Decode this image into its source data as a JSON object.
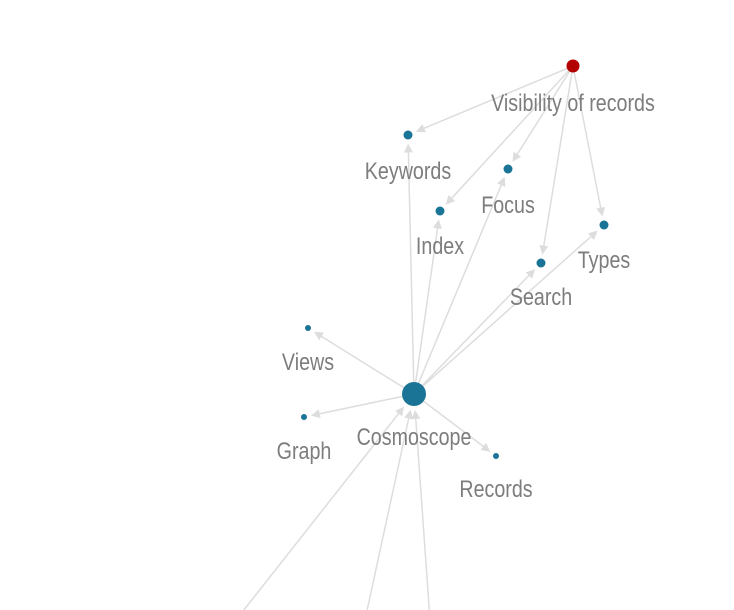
{
  "colors": {
    "background": "#ffffff",
    "edge": "#dddddd",
    "label": "#7d7d7d",
    "node_default": "#1a7496",
    "node_highlight": "#b30000"
  },
  "nodes": [
    {
      "id": "visibility",
      "label": "Visibility of records",
      "color": "#b30000"
    },
    {
      "id": "keywords",
      "label": "Keywords",
      "color": "#1a7496"
    },
    {
      "id": "focus",
      "label": "Focus",
      "color": "#1a7496"
    },
    {
      "id": "index",
      "label": "Index",
      "color": "#1a7496"
    },
    {
      "id": "types",
      "label": "Types",
      "color": "#1a7496"
    },
    {
      "id": "search",
      "label": "Search",
      "color": "#1a7496"
    },
    {
      "id": "views",
      "label": "Views",
      "color": "#1a7496"
    },
    {
      "id": "cosmoscope",
      "label": "Cosmoscope",
      "color": "#1a7496"
    },
    {
      "id": "graph",
      "label": "Graph",
      "color": "#1a7496"
    },
    {
      "id": "records",
      "label": "Records",
      "color": "#1a7496"
    }
  ],
  "edges": [
    {
      "from": "visibility",
      "to": "keywords"
    },
    {
      "from": "visibility",
      "to": "focus"
    },
    {
      "from": "visibility",
      "to": "index"
    },
    {
      "from": "visibility",
      "to": "search"
    },
    {
      "from": "visibility",
      "to": "types"
    },
    {
      "from": "cosmoscope",
      "to": "keywords"
    },
    {
      "from": "cosmoscope",
      "to": "index"
    },
    {
      "from": "cosmoscope",
      "to": "focus"
    },
    {
      "from": "cosmoscope",
      "to": "search"
    },
    {
      "from": "cosmoscope",
      "to": "types"
    },
    {
      "from": "cosmoscope",
      "to": "views"
    },
    {
      "from": "cosmoscope",
      "to": "graph"
    },
    {
      "from": "cosmoscope",
      "to": "records"
    },
    {
      "from": "offscreen-1",
      "to": "cosmoscope"
    },
    {
      "from": "offscreen-2",
      "to": "cosmoscope"
    },
    {
      "from": "offscreen-3",
      "to": "cosmoscope"
    }
  ]
}
